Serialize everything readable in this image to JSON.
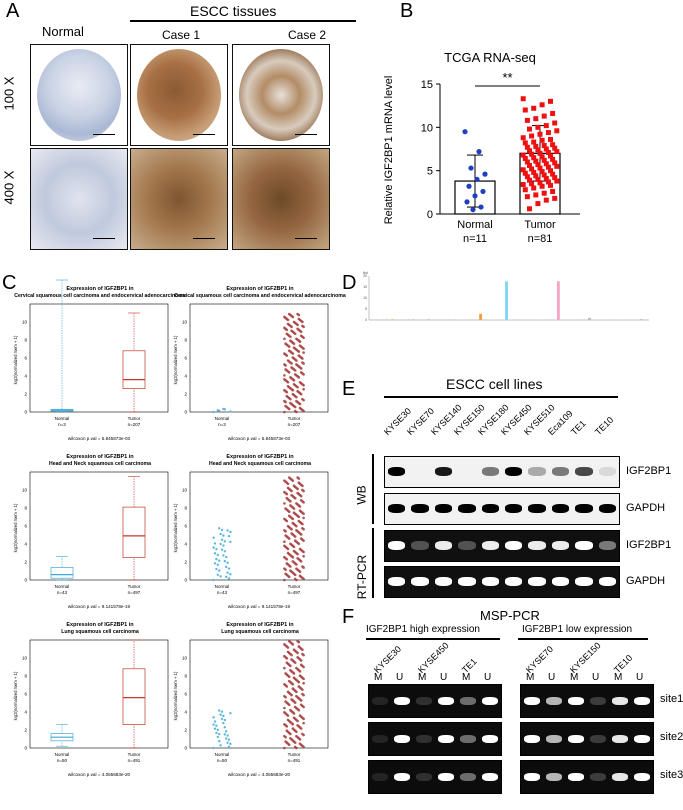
{
  "panelA": {
    "label": "A",
    "normal_header": "Normal",
    "tissues_header": "ESCC tissues",
    "case1": "Case 1",
    "case2": "Case 2",
    "mag_100": "100 X",
    "mag_400": "400 X"
  },
  "panelB": {
    "label": "B",
    "chart_data": {
      "type": "bar",
      "title": "TCGA RNA-seq",
      "ylabel": "Relative IGF2BP1 mRNA level",
      "categories": [
        "Normal",
        "Tumor"
      ],
      "sublabels": [
        "n=11",
        "n=81"
      ],
      "values": [
        3.8,
        7.0
      ],
      "sd": [
        3.0,
        3.2
      ],
      "ylim": [
        0,
        15
      ],
      "yticks": [
        0,
        5,
        10,
        15
      ],
      "significance": "**",
      "colors": [
        "#1f3fbf",
        "#ee1111"
      ],
      "points_normal": [
        9.5,
        7.2,
        5.3,
        4.6,
        4.0,
        3.2,
        2.6,
        2.1,
        1.4,
        0.8,
        0.5
      ],
      "points_tumor": [
        13.3,
        13.0,
        12.6,
        12.2,
        12.0,
        11.6,
        11.3,
        11.0,
        10.8,
        10.5,
        10.2,
        10.0,
        9.8,
        9.6,
        9.4,
        9.2,
        9.0,
        8.8,
        8.6,
        8.5,
        8.3,
        8.2,
        8.0,
        7.9,
        7.8,
        7.7,
        7.6,
        7.5,
        7.4,
        7.3,
        7.2,
        7.1,
        7.0,
        6.9,
        6.8,
        6.7,
        6.6,
        6.5,
        6.4,
        6.3,
        6.2,
        6.1,
        6.0,
        5.9,
        5.8,
        5.7,
        5.6,
        5.5,
        5.4,
        5.3,
        5.2,
        5.1,
        5.0,
        4.9,
        4.8,
        4.7,
        4.6,
        4.5,
        4.4,
        4.3,
        4.2,
        4.1,
        4.0,
        3.9,
        3.8,
        3.7,
        3.6,
        3.5,
        3.4,
        3.3,
        3.2,
        3.0,
        2.8,
        2.6,
        2.4,
        2.2,
        2.0,
        1.8,
        1.6,
        1.2,
        0.6
      ]
    }
  },
  "panelC": {
    "label": "C",
    "plots": [
      {
        "title1": "Expression of IGF2BP1 in",
        "title2": "Cervical squamous cell carcinoma and endocervical adenocarcinoma",
        "n_normal": "n=3",
        "n_tumor": "n=207",
        "pval": "wilcoxon p.val = 5.845873e-03",
        "kind": "box",
        "normal": [
          0.05,
          0.1,
          0.2,
          0.3
        ],
        "tumor": [
          0,
          2.6,
          3.6,
          6.8,
          11
        ]
      },
      {
        "title1": "Expression of IGF2BP1 in",
        "title2": "Cervical squamous cell carcinoma and endocervical adenocarcinoma",
        "n_normal": "n=3",
        "n_tumor": "n=207",
        "pval": "wilcoxon p.val = 5.845873e-03",
        "kind": "dots",
        "normal_max": 0.4,
        "tumor_max": 11
      },
      {
        "title1": "Expression of IGF2BP1 in",
        "title2": "Head and Neck squamous cell carcinoma",
        "n_normal": "n=43",
        "n_tumor": "n=497",
        "pval": "wilcoxon p.val = 9.141578e-19",
        "kind": "box",
        "normal": [
          0,
          0.2,
          0.6,
          1.4,
          2.6
        ],
        "tumor": [
          0,
          2.5,
          4.9,
          8.1,
          11.5
        ]
      },
      {
        "title1": "Expression of IGF2BP1 in",
        "title2": "Head and Neck squamous cell carcinoma",
        "n_normal": "n=43",
        "n_tumor": "n=497",
        "pval": "wilcoxon p.val = 9.141578e-19",
        "kind": "dots",
        "normal_max": 5.8,
        "tumor_max": 11.5
      },
      {
        "title1": "Expression of IGF2BP1 in",
        "title2": "Lung squamous cell carcinoma",
        "n_normal": "n=50",
        "n_tumor": "n=491",
        "pval": "wilcoxon p.val = 4.055683e-20",
        "kind": "box",
        "normal": [
          0.2,
          0.8,
          1.2,
          1.6,
          2.6
        ],
        "tumor": [
          0,
          2.6,
          5.6,
          8.8,
          12
        ]
      },
      {
        "title1": "Expression of IGF2BP1 in",
        "title2": "Lung squamous cell carcinoma",
        "n_normal": "n=50",
        "n_tumor": "n=491",
        "pval": "wilcoxon p.val = 4.055683e-20",
        "kind": "dots",
        "normal_max": 4.2,
        "tumor_max": 12
      }
    ],
    "ylabel": "log2(normalized rsem + 1)",
    "normal_label": "Normal",
    "tumor_label": "Tumor"
  },
  "panelD": {
    "label": "D",
    "chart_data": {
      "type": "bar",
      "ymax_label": "tbd",
      "yticks": [
        0,
        5,
        10,
        15,
        20
      ],
      "ylim": [
        0,
        20
      ],
      "values": [
        0.1,
        0.1,
        0.2,
        0.1,
        0.3,
        0.1,
        0.1,
        0.2,
        0.2,
        0.1,
        0.1,
        0.3,
        0.1,
        0.2,
        0.1,
        0.1,
        0.2,
        0.1,
        0.1,
        0.1,
        0.1,
        2.8,
        0.1,
        0.2,
        0.1,
        0.1,
        17.6,
        0.1,
        0.2,
        0.1,
        0.1,
        0.1,
        0.1,
        0.1,
        0.2,
        0.1,
        17.6,
        0.1,
        0.1,
        0.1,
        0.1,
        0.2,
        1.0,
        0.1,
        0.1,
        0.1,
        0.1,
        0.1,
        0.1,
        0.1,
        0.1,
        0.1,
        0.1,
        0.1
      ],
      "colors": [
        "#e88",
        "#c8a",
        "#9c6",
        "#6bd",
        "#ea6",
        "#aaa",
        "#8d8",
        "#c9c",
        "#7ad",
        "#db7",
        "#bbb",
        "#e9a",
        "#9cc",
        "#cc8",
        "#aac",
        "#d9b",
        "#8cb",
        "#ddd",
        "#bca",
        "#9ad",
        "#cab",
        "#f0a040",
        "#abd",
        "#cda",
        "#ddb",
        "#bcd",
        "#7cd8f0",
        "#dcb",
        "#acb",
        "#bdc",
        "#cbd",
        "#dbc",
        "#bda",
        "#adc",
        "#cad",
        "#dab",
        "#f4a6c8",
        "#bcb",
        "#cbc",
        "#acd",
        "#dca",
        "#bac",
        "#bbb",
        "#cdb",
        "#dbd",
        "#bdd",
        "#cca",
        "#acc",
        "#ddc",
        "#bcc",
        "#cbb",
        "#dcd",
        "#f00",
        "#aaa"
      ]
    }
  },
  "panelE": {
    "label": "E",
    "title": "ESCC cell lines",
    "lanes": [
      "KYSE30",
      "KYSE70",
      "KYSE140",
      "KYSE150",
      "KYSE180",
      "KYSE450",
      "KYSE510",
      "Eca109",
      "TE1",
      "TE10"
    ],
    "wb_label": "WB",
    "rt_label": "RT-PCR",
    "rows": [
      "IGF2BP1",
      "GAPDH",
      "IGF2BP1",
      "GAPDH"
    ],
    "wb_igf": [
      1.0,
      0.0,
      0.9,
      0.0,
      0.5,
      1.0,
      0.3,
      0.5,
      0.7,
      0.1
    ],
    "rt_igf": [
      1.0,
      0.1,
      0.9,
      0.1,
      0.9,
      1.0,
      0.9,
      0.9,
      1.0,
      0.3
    ]
  },
  "panelF": {
    "label": "F",
    "title": "MSP-PCR",
    "high_header": "IGF2BP1 high expression",
    "low_header": "IGF2BP1 low expression",
    "high_lines": [
      "KYSE30",
      "KYSE450",
      "TE1"
    ],
    "low_lines": [
      "KYSE70",
      "KYSE150",
      "TE10"
    ],
    "m": "M",
    "u": "U",
    "sites": [
      "site1",
      "site2",
      "site3"
    ]
  }
}
